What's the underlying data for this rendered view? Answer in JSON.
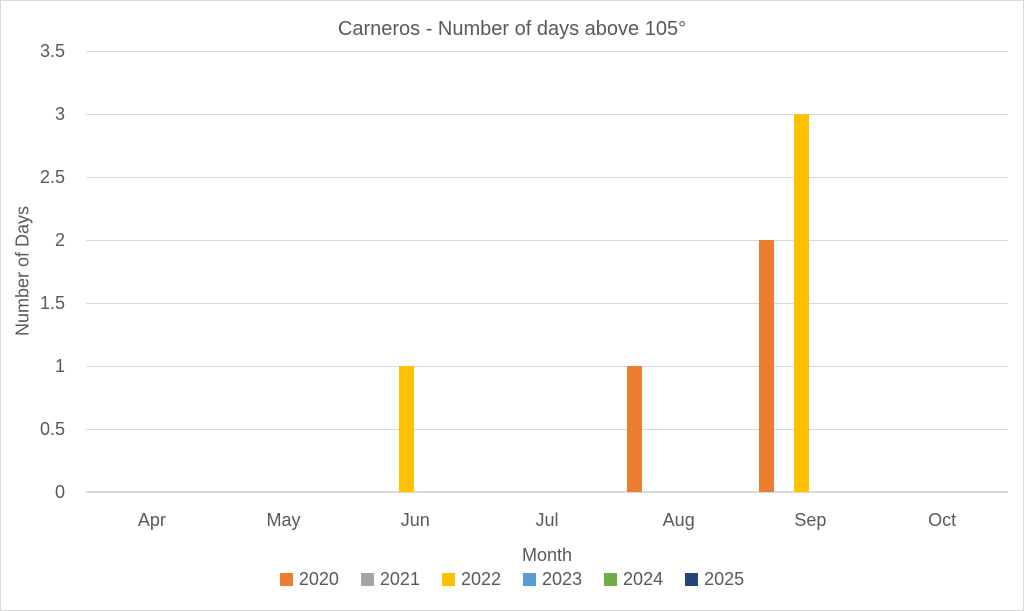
{
  "chart_data": {
    "type": "bar",
    "title": "Carneros - Number of days above 105°",
    "xlabel": "Month",
    "ylabel": "Number of Days",
    "categories": [
      "Apr",
      "May",
      "Jun",
      "Jul",
      "Aug",
      "Sep",
      "Oct"
    ],
    "series": [
      {
        "name": "2020",
        "color": "#ED7D31",
        "values": [
          0,
          0,
          0,
          0,
          1,
          2,
          0
        ]
      },
      {
        "name": "2021",
        "color": "#A5A5A5",
        "values": [
          0,
          0,
          0,
          0,
          0,
          0,
          0
        ]
      },
      {
        "name": "2022",
        "color": "#FFC000",
        "values": [
          0,
          0,
          1,
          0,
          0,
          3,
          0
        ]
      },
      {
        "name": "2023",
        "color": "#5B9BD5",
        "values": [
          0,
          0,
          0,
          0,
          0,
          0,
          0
        ]
      },
      {
        "name": "2024",
        "color": "#70AD47",
        "values": [
          0,
          0,
          0,
          0,
          0,
          0,
          0
        ]
      },
      {
        "name": "2025",
        "color": "#264478",
        "values": [
          0,
          0,
          0,
          0,
          0,
          0,
          0
        ]
      }
    ],
    "ylim": [
      0,
      3.5
    ],
    "ytick_step": 0.5,
    "yticks": [
      "0",
      "0.5",
      "1",
      "1.5",
      "2",
      "2.5",
      "3",
      "3.5"
    ],
    "grid": true,
    "legend_position": "bottom"
  },
  "style": {
    "text_color": "#595959",
    "gridline_color": "#D9D9D9",
    "background": "#FFFFFF",
    "border_color": "#D9D9D9"
  }
}
